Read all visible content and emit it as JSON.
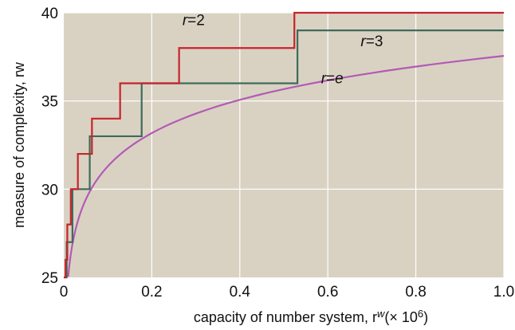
{
  "chart_data": {
    "type": "line",
    "xlabel": "capacity of number system, r",
    "xlabel_sup": "w",
    "xlabel_unit": "(× 10",
    "xlabel_unit_sup": "6",
    "xlabel_unit_close": ")",
    "ylabel": "measure of complexity, rw",
    "xlim": [
      0,
      1.0
    ],
    "ylim": [
      25,
      40
    ],
    "x_ticks": [
      0,
      0.2,
      0.4,
      0.6,
      0.8,
      1.0
    ],
    "x_tick_labels": [
      "0",
      "0.2",
      "0.4",
      "0.6",
      "0.8",
      "1.0"
    ],
    "y_ticks": [
      25,
      30,
      35,
      40
    ],
    "y_tick_labels": [
      "25",
      "30",
      "35",
      "40"
    ],
    "grid": true,
    "background_color": "#d9d2c3",
    "series": [
      {
        "name": "r=2",
        "style": "step",
        "color": "#c8232b",
        "points": [
          [
            0.0,
            25
          ],
          [
            0.004,
            26
          ],
          [
            0.008,
            28
          ],
          [
            0.016,
            30
          ],
          [
            0.032,
            32
          ],
          [
            0.064,
            34
          ],
          [
            0.128,
            36
          ],
          [
            0.262,
            38
          ],
          [
            0.524,
            40
          ],
          [
            1.0,
            40
          ]
        ]
      },
      {
        "name": "r=3",
        "style": "step",
        "color": "#3e6b5a",
        "points": [
          [
            0.0,
            25
          ],
          [
            0.0066,
            27
          ],
          [
            0.0197,
            30
          ],
          [
            0.059,
            33
          ],
          [
            0.177,
            36
          ],
          [
            0.531,
            39
          ],
          [
            1.0,
            39
          ]
        ]
      },
      {
        "name": "r=e",
        "style": "smooth",
        "color": "#b45ab4",
        "formula": "e * ln(x * 1e6)",
        "x_min": 0.0001,
        "x_max": 1.0
      }
    ],
    "annotations": [
      {
        "text": "r=2",
        "series": "r=2",
        "x": 0.295,
        "y": 39.3
      },
      {
        "text": "r=3",
        "series": "r=3",
        "x": 0.7,
        "y": 38.1
      },
      {
        "text": "r=e",
        "series": "r=e",
        "x": 0.61,
        "y": 36.0
      }
    ]
  }
}
